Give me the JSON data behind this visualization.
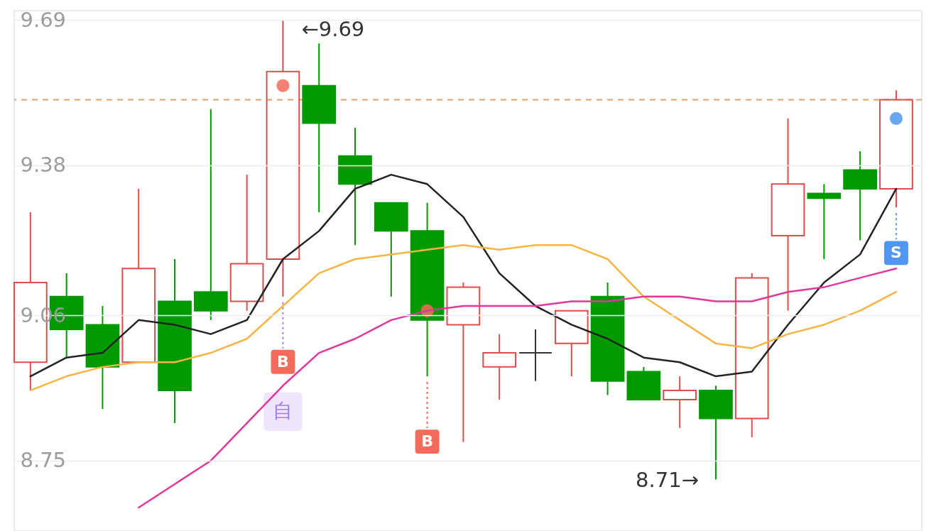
{
  "chart_data": {
    "type": "candlestick",
    "categories": [
      null,
      null,
      null,
      null,
      null,
      null,
      null,
      null,
      null,
      null,
      null,
      null,
      null,
      null,
      null,
      null,
      null,
      null,
      null,
      null,
      null,
      null,
      null,
      null,
      null
    ],
    "ohlc": [
      [
        8.96,
        9.28,
        8.9,
        9.13
      ],
      [
        9.1,
        9.15,
        8.97,
        9.03
      ],
      [
        9.04,
        9.08,
        8.86,
        8.95
      ],
      [
        8.96,
        9.33,
        8.96,
        9.16
      ],
      [
        9.09,
        9.18,
        8.83,
        8.9
      ],
      [
        9.11,
        9.5,
        9.05,
        9.07
      ],
      [
        9.09,
        9.36,
        9.07,
        9.17
      ],
      [
        9.18,
        9.69,
        9.1,
        9.58
      ],
      [
        9.55,
        9.64,
        9.28,
        9.47
      ],
      [
        9.4,
        9.46,
        9.21,
        9.34
      ],
      [
        9.3,
        9.3,
        9.1,
        9.24
      ],
      [
        9.24,
        9.3,
        8.93,
        9.05
      ],
      [
        9.04,
        9.13,
        8.79,
        9.12
      ],
      [
        8.95,
        9.02,
        8.88,
        8.98
      ],
      [
        8.98,
        9.03,
        8.92,
        8.98
      ],
      [
        9.0,
        9.07,
        8.93,
        9.07
      ],
      [
        9.1,
        9.13,
        8.89,
        8.92
      ],
      [
        8.94,
        8.95,
        8.88,
        8.88
      ],
      [
        8.88,
        8.93,
        8.82,
        8.9
      ],
      [
        8.9,
        8.91,
        8.71,
        8.84
      ],
      [
        8.84,
        9.15,
        8.8,
        9.14
      ],
      [
        9.23,
        9.48,
        9.07,
        9.34
      ],
      [
        9.32,
        9.34,
        9.18,
        9.31
      ],
      [
        9.37,
        9.41,
        9.22,
        9.33
      ],
      [
        9.33,
        9.54,
        9.29,
        9.52
      ]
    ],
    "colors": [
      "#e04b4b",
      "#009a00",
      "#009a00",
      "#e04b4b",
      "#009a00",
      "#009a00",
      "#e04b4b",
      "#e04b4b",
      "#009a00",
      "#009a00",
      "#009a00",
      "#009a00",
      "#e04b4b",
      "#e04b4b",
      "#333333",
      "#e04b4b",
      "#009a00",
      "#009a00",
      "#e04b4b",
      "#009a00",
      "#e04b4b",
      "#e04b4b",
      "#009a00",
      "#009a00",
      "#e04b4b"
    ],
    "ylim": [
      8.6,
      9.71
    ],
    "yticks": [
      8.75,
      9.06,
      9.38,
      9.69
    ],
    "grid": "y",
    "tick_labels": "y",
    "series": [
      {
        "type": "line",
        "color": "#222222",
        "values": [
          8.93,
          8.97,
          8.98,
          9.05,
          9.04,
          9.02,
          9.05,
          9.18,
          9.24,
          9.33,
          9.36,
          9.34,
          9.27,
          9.15,
          9.08,
          9.04,
          9.01,
          8.97,
          8.96,
          8.93,
          8.94,
          9.04,
          9.13,
          9.19,
          9.33
        ]
      },
      {
        "type": "line",
        "color": "#f6b443",
        "values": [
          8.9,
          8.93,
          8.95,
          8.96,
          8.96,
          8.98,
          9.01,
          9.08,
          9.15,
          9.18,
          9.19,
          9.2,
          9.21,
          9.2,
          9.21,
          9.21,
          9.18,
          9.1,
          9.05,
          9.0,
          8.99,
          9.02,
          9.04,
          9.07,
          9.11
        ]
      },
      {
        "type": "line",
        "color": "#e0379b",
        "values": [
          null,
          null,
          null,
          8.65,
          8.7,
          8.75,
          8.83,
          8.91,
          8.98,
          9.01,
          9.05,
          9.07,
          9.08,
          9.08,
          9.08,
          9.09,
          9.09,
          9.1,
          9.1,
          9.09,
          9.09,
          9.11,
          9.12,
          9.14,
          9.16
        ]
      },
      {
        "type": "scatter",
        "marker": "circle",
        "values": [
          null,
          null,
          null,
          null,
          null,
          null,
          null,
          9.55,
          null,
          null,
          null,
          9.07,
          null,
          null,
          null,
          null,
          null,
          null,
          null,
          null,
          null,
          null,
          null,
          null,
          9.48
        ],
        "colors": [
          null,
          null,
          null,
          null,
          null,
          null,
          null,
          "#f26b5b",
          null,
          null,
          null,
          "#f26b5b",
          null,
          null,
          null,
          null,
          null,
          null,
          null,
          null,
          null,
          null,
          null,
          null,
          "#4f97f0"
        ]
      }
    ],
    "ref_lines": [
      {
        "axis": "y",
        "value": 9.52,
        "color": "#d9a36b",
        "line_style": "dashed"
      }
    ],
    "annotations": [
      "←9.69",
      "8.71→",
      "B",
      "B",
      "S",
      "自"
    ]
  }
}
